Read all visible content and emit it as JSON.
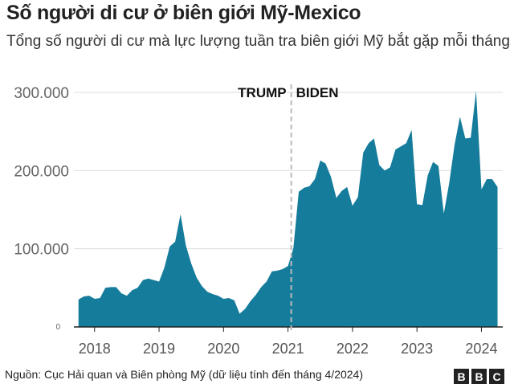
{
  "title": "Số người di cư ở biên giới Mỹ-Mexico",
  "subtitle": "Tổng số người di cư mà lực lượng tuần tra biên giới Mỹ bắt gặp mỗi tháng",
  "source": "Nguồn: Cục Hải quan và Biên phòng Mỹ (dữ liệu tính đến tháng 4/2024)",
  "logo": "BBC",
  "colors": {
    "area": "#167c9c",
    "grid": "#dddddd",
    "axis": "#222222"
  },
  "chart_data": {
    "type": "area",
    "title": "",
    "xlabel": "",
    "ylabel": "",
    "ylim": [
      0,
      300000
    ],
    "yticks": [
      {
        "value": 0,
        "label": "0"
      },
      {
        "value": 100000,
        "label": "100.000"
      },
      {
        "value": 200000,
        "label": "200.000"
      },
      {
        "value": 300000,
        "label": "300.000"
      }
    ],
    "xticks": [
      "2018",
      "2019",
      "2020",
      "2021",
      "2022",
      "2023",
      "2024"
    ],
    "grid": true,
    "annotations": {
      "divider_date": "2021-01",
      "left_label": "TRUMP",
      "right_label": "BIDEN"
    },
    "start": "2017-10",
    "end": "2024-04",
    "values": [
      35000,
      39000,
      40000,
      36000,
      37000,
      50000,
      51000,
      51000,
      43000,
      40000,
      47000,
      50000,
      60000,
      62000,
      60000,
      58000,
      76000,
      103000,
      109000,
      144000,
      104000,
      81000,
      63000,
      52000,
      45000,
      42000,
      40000,
      36000,
      37000,
      34000,
      17000,
      23000,
      33000,
      41000,
      51000,
      58000,
      71000,
      72000,
      74000,
      78000,
      101000,
      173000,
      178000,
      180000,
      189000,
      213000,
      209000,
      192000,
      165000,
      174000,
      179000,
      155000,
      166000,
      223000,
      235000,
      241000,
      207000,
      200000,
      204000,
      227000,
      231000,
      235000,
      252000,
      157000,
      156000,
      194000,
      211000,
      206000,
      145000,
      184000,
      233000,
      269000,
      241000,
      242000,
      302000,
      176000,
      189000,
      189000,
      179000
    ]
  }
}
